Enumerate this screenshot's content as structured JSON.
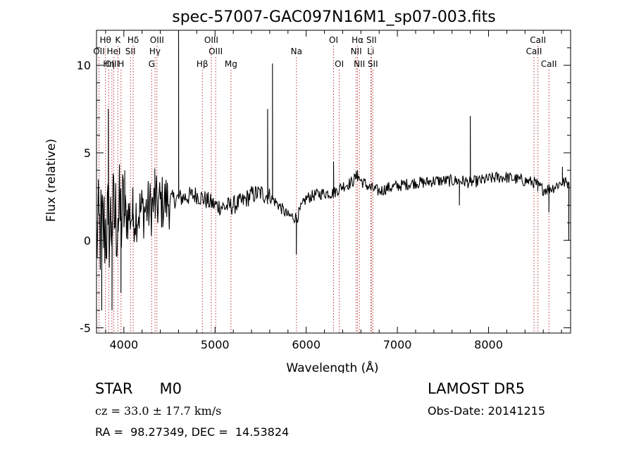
{
  "chart_data": {
    "type": "line",
    "title": "spec-57007-GAC097N16M1_sp07-003.fits",
    "xlabel": "Wavelength (Å)",
    "ylabel": "Flux (relative)",
    "xlim": [
      3700,
      8900
    ],
    "ylim": [
      -5.3,
      12.0
    ],
    "xticks": [
      4000,
      5000,
      6000,
      7000,
      8000
    ],
    "yticks": [
      -5,
      0,
      5,
      10
    ],
    "spectrum_anchors": {
      "x": [
        3700,
        3780,
        3850,
        3900,
        4000,
        4100,
        4200,
        4300,
        4400,
        4500,
        4600,
        4700,
        4800,
        4900,
        5000,
        5100,
        5200,
        5300,
        5400,
        5500,
        5600,
        5700,
        5800,
        5900,
        5950,
        6000,
        6100,
        6200,
        6300,
        6400,
        6500,
        6560,
        6600,
        6700,
        6800,
        6900,
        7000,
        7100,
        7200,
        7300,
        7400,
        7500,
        7600,
        7700,
        7800,
        7900,
        8000,
        8100,
        8200,
        8300,
        8400,
        8500,
        8600,
        8700,
        8800,
        8880
      ],
      "y": [
        0.2,
        0.6,
        1.0,
        1.2,
        1.4,
        1.5,
        1.7,
        1.9,
        2.1,
        2.3,
        2.4,
        2.5,
        2.6,
        2.3,
        2.0,
        1.9,
        2.0,
        2.2,
        2.6,
        2.7,
        2.5,
        2.0,
        1.4,
        1.3,
        1.9,
        2.4,
        2.6,
        2.7,
        2.7,
        3.1,
        3.3,
        3.7,
        3.4,
        3.0,
        2.8,
        3.0,
        3.1,
        3.2,
        3.3,
        3.3,
        3.4,
        3.4,
        3.4,
        3.4,
        3.3,
        3.4,
        3.5,
        3.6,
        3.6,
        3.5,
        3.4,
        3.3,
        2.9,
        3.0,
        3.3,
        3.3
      ]
    },
    "spectrum_features": [
      {
        "x": 3757,
        "y": -4.0
      },
      {
        "x": 3785,
        "y": 1.2
      },
      {
        "x": 3830,
        "y": 7.5
      },
      {
        "x": 3870,
        "y": -4.0
      },
      {
        "x": 3935,
        "y": 0.5
      },
      {
        "x": 3968,
        "y": -3.0
      },
      {
        "x": 4010,
        "y": 4.0
      },
      {
        "x": 4101,
        "y": 0.8
      },
      {
        "x": 4340,
        "y": 4.1
      },
      {
        "x": 4600,
        "y": 12.0
      },
      {
        "x": 5577,
        "y": 7.5
      },
      {
        "x": 5630,
        "y": 10.1
      },
      {
        "x": 5892,
        "y": -0.8
      },
      {
        "x": 6300,
        "y": 4.5
      },
      {
        "x": 6563,
        "y": 4.0
      },
      {
        "x": 7800,
        "y": 7.1
      },
      {
        "x": 7680,
        "y": 2.0
      },
      {
        "x": 8540,
        "y": 2.8
      },
      {
        "x": 8662,
        "y": 1.6
      },
      {
        "x": 8810,
        "y": 4.2
      },
      {
        "x": 8880,
        "y": 0.0
      }
    ],
    "spectral_lines": [
      {
        "label": "Hθ",
        "wavelength": 3798,
        "row": 1
      },
      {
        "label": "OII",
        "wavelength": 3727,
        "row": 2
      },
      {
        "label": "Hη",
        "wavelength": 3836,
        "row": 3
      },
      {
        "label": "OIII",
        "wavelength": 3869,
        "row": 3
      },
      {
        "label": "HeI",
        "wavelength": 3889,
        "row": 2
      },
      {
        "label": "K",
        "wavelength": 3934,
        "row": 1
      },
      {
        "label": "H",
        "wavelength": 3969,
        "row": 3
      },
      {
        "label": "Hδ",
        "wavelength": 4102,
        "row": 1
      },
      {
        "label": "SII",
        "wavelength": 4072,
        "row": 2
      },
      {
        "label": "OIII",
        "wavelength": 4363,
        "row": 1
      },
      {
        "label": "Hγ",
        "wavelength": 4341,
        "row": 2
      },
      {
        "label": "G",
        "wavelength": 4305,
        "row": 3
      },
      {
        "label": "OIII",
        "wavelength": 4959,
        "row": 1
      },
      {
        "label": "OIII",
        "wavelength": 5007,
        "row": 2
      },
      {
        "label": "Hβ",
        "wavelength": 4861,
        "row": 3
      },
      {
        "label": "Mg",
        "wavelength": 5175,
        "row": 3
      },
      {
        "label": "Na",
        "wavelength": 5893,
        "row": 2
      },
      {
        "label": "OI",
        "wavelength": 6300,
        "row": 1
      },
      {
        "label": "OI",
        "wavelength": 6363,
        "row": 3
      },
      {
        "label": "Hα",
        "wavelength": 6563,
        "row": 1
      },
      {
        "label": "NII",
        "wavelength": 6548,
        "row": 2
      },
      {
        "label": "NII",
        "wavelength": 6583,
        "row": 3
      },
      {
        "label": "SII",
        "wavelength": 6716,
        "row": 1
      },
      {
        "label": "Li",
        "wavelength": 6708,
        "row": 2
      },
      {
        "label": "SII",
        "wavelength": 6731,
        "row": 3
      },
      {
        "label": "CaII",
        "wavelength": 8542,
        "row": 1
      },
      {
        "label": "CaII",
        "wavelength": 8498,
        "row": 2
      },
      {
        "label": "CaII",
        "wavelength": 8662,
        "row": 3
      }
    ],
    "colors": {
      "spectrum": "#000000",
      "line_markers": "#b02020"
    }
  },
  "info": {
    "class_label": "STAR",
    "subclass": "M0",
    "survey": "LAMOST DR5",
    "cz": "cz = 33.0 ± 17.7 km/s",
    "obs_date": "Obs-Date: 20141215",
    "coords": "RA =  98.27349, DEC =  14.53824"
  }
}
